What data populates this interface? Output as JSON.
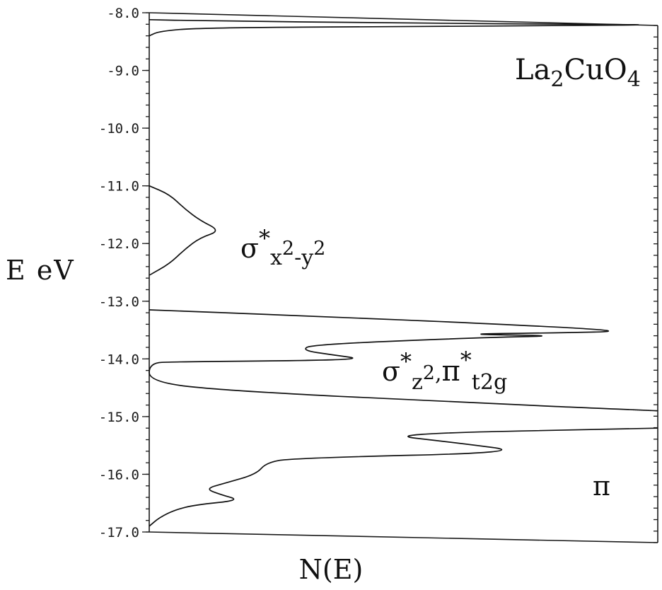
{
  "chart_data": {
    "type": "line",
    "title": "",
    "compound": {
      "prefix": "La",
      "sub1": "2",
      "middle": "CuO",
      "sub2": "4"
    },
    "xlabel": "N(E)",
    "ylabel": "E eV",
    "ylim": [
      -17.0,
      -8.0
    ],
    "y_ticks": [
      -8.0,
      -9.0,
      -10.0,
      -11.0,
      -12.0,
      -13.0,
      -14.0,
      -15.0,
      -16.0,
      -17.0
    ],
    "y_tick_labels": [
      "-8.0",
      "-9.0",
      "-10.0",
      "-11.0",
      "-12.0",
      "-13.0",
      "-14.0",
      "-15.0",
      "-16.0",
      "-17.0"
    ],
    "x_ticks_shown": false,
    "grid": false,
    "band_annotations": [
      {
        "symbol": "σ",
        "star": "*",
        "sub": "x",
        "sup": "2",
        "sub2": "-y",
        "sup2": "2",
        "energy": -11.8
      },
      {
        "symbol": "σ",
        "star": "*",
        "sub": "z",
        "sup": "2",
        "sep": ",",
        "symbol2": "π",
        "star2": "*",
        "sub3": "t",
        "sub4": "2g",
        "energy": -14.3
      },
      {
        "symbol": "π",
        "energy": -16.2
      }
    ],
    "series": [
      {
        "values": [
          [
            0.0,
            -8.12
          ],
          [
            0.1,
            -8.14
          ],
          [
            0.5,
            -8.18
          ],
          [
            0.85,
            -8.2
          ],
          [
            1.0,
            -8.21
          ],
          [
            0.85,
            -8.22
          ],
          [
            0.5,
            -8.24
          ],
          [
            0.1,
            -8.26
          ],
          [
            0.02,
            -8.32
          ],
          [
            0.0,
            -8.4
          ]
        ]
      },
      {
        "values": [
          [
            0.0,
            -11.0
          ],
          [
            0.04,
            -11.15
          ],
          [
            0.07,
            -11.4
          ],
          [
            0.1,
            -11.6
          ],
          [
            0.14,
            -11.78
          ],
          [
            0.1,
            -11.9
          ],
          [
            0.07,
            -12.1
          ],
          [
            0.04,
            -12.35
          ],
          [
            0.0,
            -12.55
          ]
        ]
      },
      {
        "values": [
          [
            0.0,
            -13.15
          ],
          [
            0.3,
            -13.25
          ],
          [
            0.7,
            -13.4
          ],
          [
            0.95,
            -13.52
          ],
          [
            0.8,
            -13.55
          ],
          [
            0.6,
            -13.57
          ],
          [
            0.82,
            -13.6
          ],
          [
            0.65,
            -13.63
          ],
          [
            0.32,
            -13.75
          ],
          [
            0.3,
            -13.85
          ],
          [
            0.36,
            -13.93
          ],
          [
            0.42,
            -14.0
          ],
          [
            0.3,
            -14.03
          ],
          [
            0.05,
            -14.05
          ],
          [
            0.0,
            -14.07
          ],
          [
            0.0,
            -14.4
          ],
          [
            0.15,
            -14.55
          ],
          [
            0.6,
            -14.75
          ],
          [
            1.0,
            -14.9
          ]
        ]
      },
      {
        "values": [
          [
            1.0,
            -15.2
          ],
          [
            0.45,
            -15.3
          ],
          [
            0.6,
            -15.45
          ],
          [
            0.75,
            -15.62
          ],
          [
            0.28,
            -15.72
          ],
          [
            0.23,
            -15.8
          ],
          [
            0.21,
            -16.0
          ],
          [
            0.15,
            -16.15
          ],
          [
            0.11,
            -16.25
          ],
          [
            0.14,
            -16.35
          ],
          [
            0.18,
            -16.45
          ],
          [
            0.09,
            -16.53
          ],
          [
            0.05,
            -16.62
          ],
          [
            0.02,
            -16.75
          ],
          [
            0.0,
            -16.9
          ]
        ]
      }
    ]
  }
}
